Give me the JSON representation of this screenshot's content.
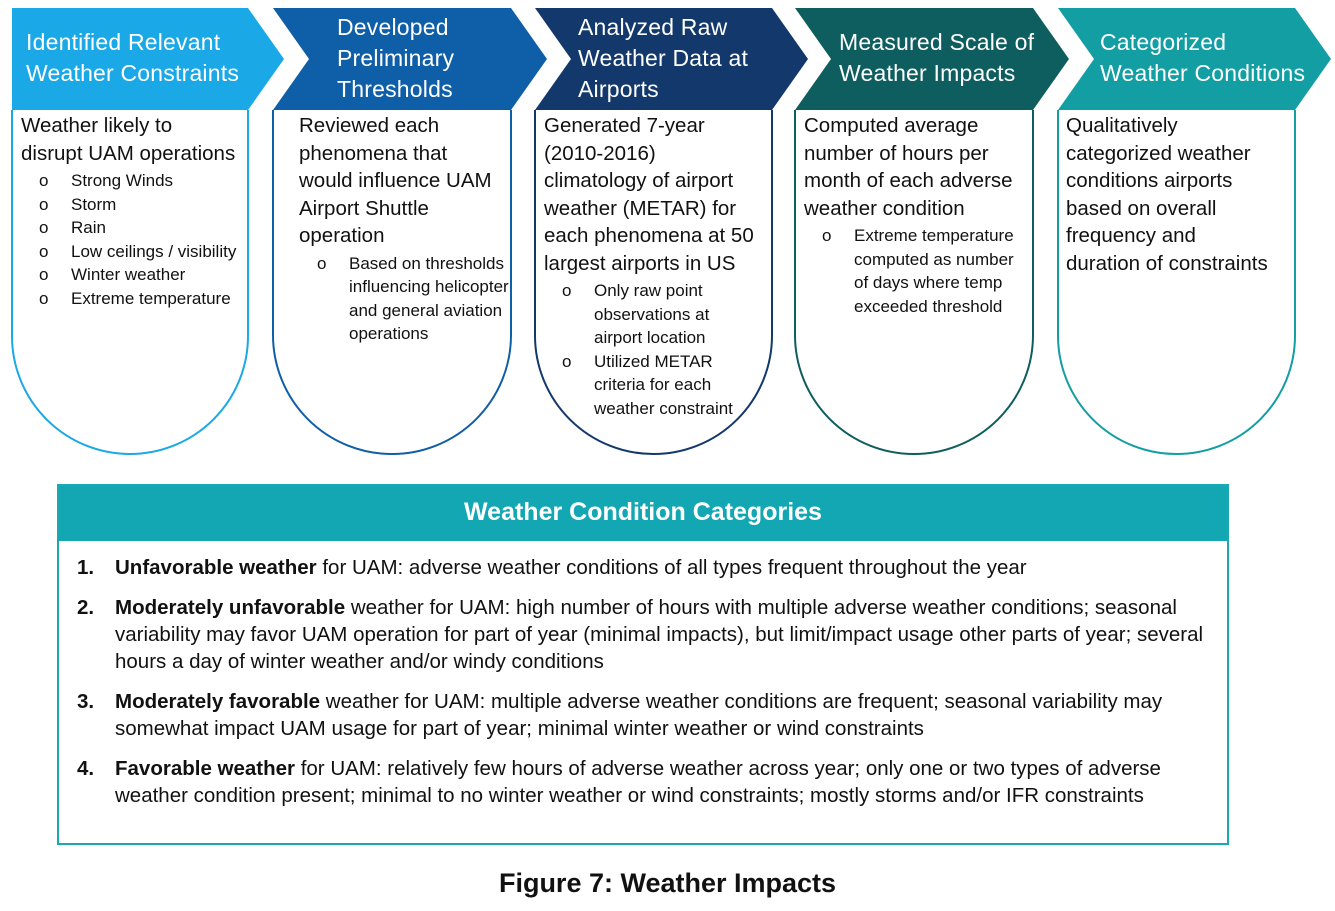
{
  "colors": {
    "step_1": "#1aa8e7",
    "step_2": "#0f5ea8",
    "step_3": "#13386b",
    "step_4": "#0e5e5f",
    "step_5": "#129ea3",
    "categories_header": "#12a7b2"
  },
  "steps": [
    {
      "title": [
        "Identified Relevant",
        "Weather Constraints"
      ],
      "body": [
        "Weather likely to",
        "disrupt UAM operations"
      ],
      "bullets": [
        [
          "Strong Winds"
        ],
        [
          "Storm"
        ],
        [
          "Rain"
        ],
        [
          "Low ceilings / visibility"
        ],
        [
          "Winter weather"
        ],
        [
          "Extreme temperature"
        ]
      ]
    },
    {
      "title": [
        "Developed",
        "Preliminary",
        "Thresholds"
      ],
      "body": [
        "Reviewed each",
        "phenomena that",
        "would influence UAM",
        "Airport Shuttle",
        "operation"
      ],
      "bullets": [
        [
          "Based on thresholds",
          "influencing helicopter",
          "and general aviation",
          "operations"
        ]
      ]
    },
    {
      "title": [
        "Analyzed Raw",
        "Weather Data at",
        "Airports"
      ],
      "body": [
        "Generated 7-year",
        "(2010-2016)",
        "climatology of airport",
        "weather (METAR) for",
        "each phenomena at 50",
        "largest airports in US"
      ],
      "bullets": [
        [
          "Only raw point",
          "observations at",
          "airport location"
        ],
        [
          "Utilized METAR",
          "criteria for each",
          "weather constraint"
        ]
      ]
    },
    {
      "title": [
        "Measured Scale of",
        "Weather Impacts"
      ],
      "body": [
        "Computed average",
        "number of hours per",
        "month of each adverse",
        "weather condition"
      ],
      "bullets": [
        [
          "Extreme temperature",
          "computed as number",
          "of days where temp",
          "exceeded threshold"
        ]
      ]
    },
    {
      "title": [
        "Categorized",
        "Weather Conditions"
      ],
      "body": [
        "Qualitatively",
        "categorized weather",
        "conditions airports",
        "based on overall",
        "frequency and",
        "duration of constraints"
      ],
      "bullets": []
    }
  ],
  "bullet_glyph": "o",
  "categories": {
    "title": "Weather Condition Categories",
    "items": [
      {
        "number": "1.",
        "bold": "Unfavorable weather",
        "text": " for UAM: adverse weather conditions of all types frequent throughout the year"
      },
      {
        "number": "2.",
        "bold": "Moderately unfavorable",
        "text": " weather for UAM: high number of hours with multiple adverse weather conditions; seasonal variability may favor UAM operation for part of year (minimal impacts), but limit/impact usage other parts of year; several hours a day of winter weather and/or windy conditions"
      },
      {
        "number": "3.",
        "bold": "Moderately favorable",
        "text": " weather for UAM: multiple adverse weather conditions are frequent; seasonal variability may somewhat impact UAM usage for part of year; minimal winter weather or wind constraints"
      },
      {
        "number": "4.",
        "bold": "Favorable weather",
        "text": " for UAM: relatively few hours of adverse weather across year; only one or two types of adverse weather condition present; minimal to no winter weather or wind constraints; mostly storms and/or IFR constraints"
      }
    ]
  },
  "caption": "Figure 7: Weather Impacts"
}
